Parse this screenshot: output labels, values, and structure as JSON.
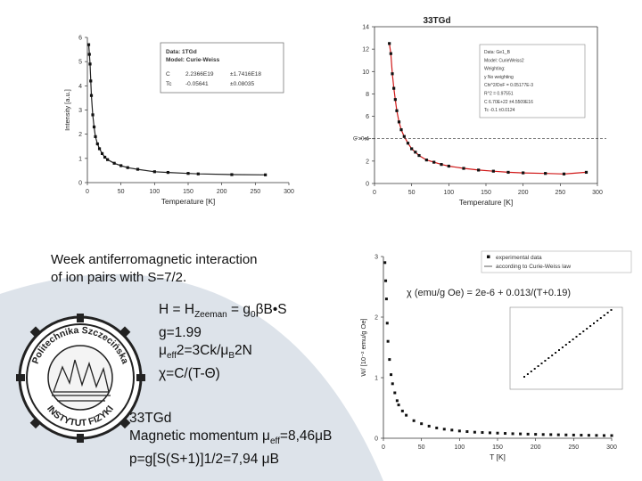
{
  "slide": {
    "note_line1": "Week antiferromagnetic interaction",
    "note_line2": "of ion pairs with S=7/2.",
    "hamiltonian": "H = H",
    "hamiltonian_sub": "Zeeman",
    "hamiltonian_rest": " = g",
    "hamiltonian_sub2": "0",
    "hamiltonian_tail": "βB•S",
    "g_value": "g=1.99",
    "mu_eff_prefix": "μ",
    "mu_eff_sub": "eff",
    "mu_eff_eq": "2=3Ck/μ",
    "mu_eff_sub2": "B",
    "mu_eff_tail": "2N",
    "chi_formula": "χ=C/(T-Θ)",
    "compound": "33TGd",
    "moment_prefix": "Magnetic momentum μ",
    "moment_sub": "eff",
    "moment_value": "=8,46μB",
    "p_formula": "p=g[S(S+1)]1/2=7,94 μB"
  },
  "logo": {
    "top_text": "Politechnika Szczecińska",
    "bottom_text": "INSTYTUT FIZYKI"
  },
  "chart_data": [
    {
      "type": "scatter",
      "title": "",
      "xlabel": "Temperature [K]",
      "ylabel": "Intensity [a.u.]",
      "xlim": [
        0,
        300
      ],
      "ylim": [
        0,
        6
      ],
      "x_ticks": [
        "0",
        "50",
        "100",
        "150",
        "200",
        "250",
        "300"
      ],
      "y_ticks": [
        "0",
        "1",
        "2",
        "3",
        "4",
        "5",
        "6"
      ],
      "legend_box": {
        "line1": "Data: 1TGd",
        "line2": "Model: Curie-Weiss",
        "param1_name": "C",
        "param1_value": "2.2366E19",
        "param1_err": "±1.7416E18",
        "param2_name": "Tc",
        "param2_value": "-0.05641",
        "param2_err": "±0.08035"
      },
      "series": [
        {
          "x": [
            2,
            3,
            4,
            5,
            6,
            8,
            10,
            12,
            15,
            18,
            22,
            26,
            30,
            40,
            50,
            60,
            75,
            100,
            120,
            150,
            165,
            215,
            265
          ],
          "y": [
            5.7,
            5.3,
            4.9,
            4.2,
            3.6,
            2.8,
            2.3,
            1.9,
            1.6,
            1.4,
            1.2,
            1.05,
            0.95,
            0.8,
            0.7,
            0.62,
            0.55,
            0.45,
            0.42,
            0.38,
            0.36,
            0.33,
            0.32
          ]
        }
      ]
    },
    {
      "type": "scatter",
      "title": "33TGd",
      "xlabel": "Temperature [K]",
      "ylabel": "",
      "xlim": [
        0,
        300
      ],
      "ylim": [
        0,
        14
      ],
      "x_ticks": [
        "0",
        "50",
        "100",
        "150",
        "200",
        "250",
        "300"
      ],
      "y_ticks": [
        "0",
        "2",
        "4",
        "6",
        "8",
        "10",
        "12",
        "14"
      ],
      "left_label": "C'=0e",
      "legend_box": {
        "line1": "Data: Ge1_B",
        "line2": "Model: CurieWeiss2",
        "line3": "Weighting:",
        "line4": "y       No weighting",
        "line5": "Chi^2/DoF     = 0.05177E-3",
        "line6": "R^2          = 0.97551",
        "line7": "C     6.70E+22  ±4.5509E16",
        "line8": "Tc    -0.1     ±0.0124"
      },
      "series": [
        {
          "x": [
            20,
            22,
            24,
            26,
            28,
            30,
            33,
            36,
            40,
            45,
            50,
            55,
            60,
            70,
            80,
            90,
            100,
            120,
            140,
            160,
            180,
            200,
            230,
            255,
            285
          ],
          "y": [
            12.5,
            11.6,
            9.8,
            8.5,
            7.5,
            6.5,
            5.5,
            4.8,
            4.2,
            3.6,
            3.1,
            2.8,
            2.5,
            2.1,
            1.9,
            1.7,
            1.55,
            1.35,
            1.2,
            1.1,
            1.0,
            0.95,
            0.9,
            0.85,
            1.0
          ]
        }
      ]
    },
    {
      "type": "scatter",
      "title": "",
      "xlabel": "T [K]",
      "ylabel": "W/ [10⁻² emu/g Oe]",
      "xlim": [
        0,
        300
      ],
      "ylim": [
        0,
        3
      ],
      "x_ticks": [
        "0",
        "50",
        "100",
        "150",
        "200",
        "250",
        "300"
      ],
      "y_ticks": [
        "0",
        "1",
        "2",
        "3"
      ],
      "legend": [
        {
          "name": "experimental data",
          "marker": "square"
        },
        {
          "name": "according to Curie-Weiss law",
          "marker": "line"
        }
      ],
      "fit_text": "χ (emu/g Oe) = 2e-6 + 0.013/(T+0.19)",
      "series": [
        {
          "x": [
            2,
            3,
            4,
            5,
            6,
            8,
            10,
            12,
            15,
            18,
            20,
            25,
            30,
            40,
            50,
            60,
            70,
            80,
            90,
            100,
            110,
            120,
            130,
            140,
            150,
            160,
            170,
            180,
            190,
            200,
            210,
            220,
            230,
            240,
            250,
            260,
            270,
            280,
            290,
            300
          ],
          "y": [
            2.9,
            2.6,
            2.3,
            1.9,
            1.6,
            1.3,
            1.05,
            0.9,
            0.75,
            0.62,
            0.55,
            0.45,
            0.38,
            0.29,
            0.24,
            0.2,
            0.17,
            0.15,
            0.135,
            0.12,
            0.11,
            0.1,
            0.095,
            0.09,
            0.085,
            0.08,
            0.075,
            0.072,
            0.068,
            0.065,
            0.062,
            0.06,
            0.057,
            0.055,
            0.053,
            0.051,
            0.049,
            0.047,
            0.045,
            0.044
          ]
        }
      ]
    }
  ]
}
